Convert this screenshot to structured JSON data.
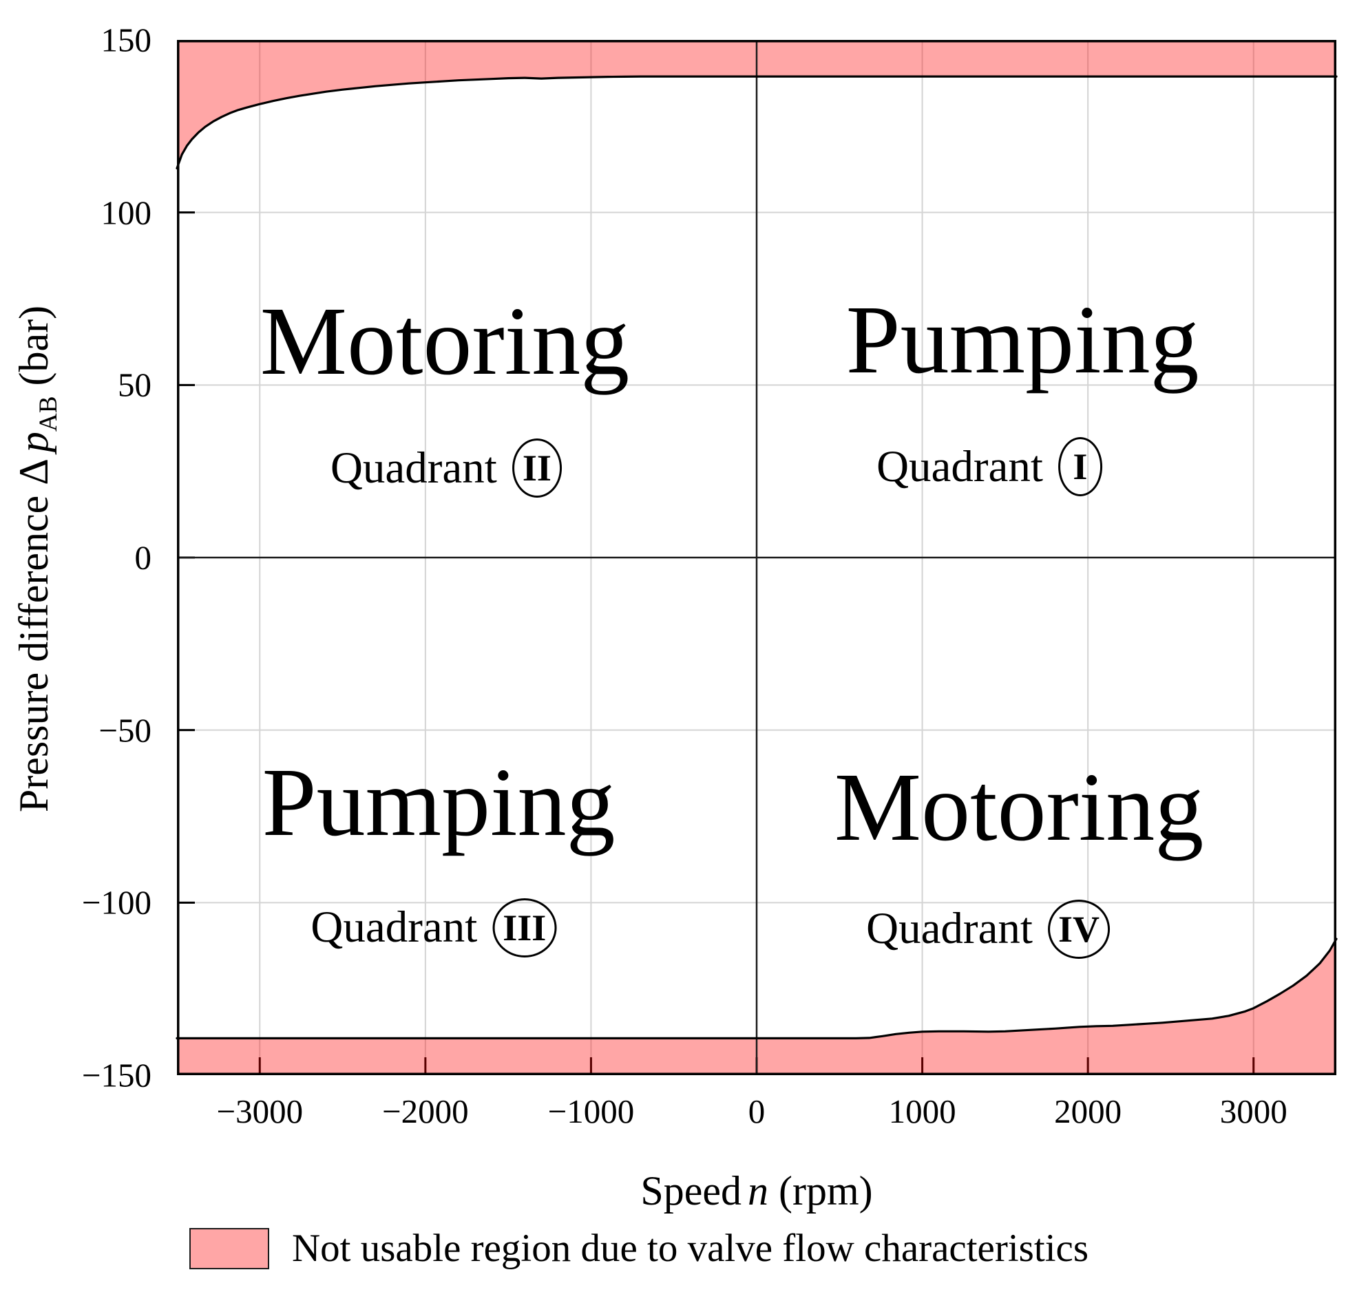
{
  "colors": {
    "region_fill": "rgba(255,0,0,0.35)",
    "swatch_fill": "#ffa6a6",
    "boundary_line": "#000000",
    "grid": "#d4d4d4",
    "zero_line": "#1b1b1b",
    "spine": "#000000",
    "tick": "#000000",
    "text": "#000000"
  },
  "axes": {
    "y": {
      "label_prefix": "Pressure difference Δ",
      "symbol": "p",
      "subscript": "AB",
      "suffix": " (bar)"
    },
    "x": {
      "label_prefix": "Speed",
      "symbol": "n",
      "suffix": " (rpm)"
    }
  },
  "legend": {
    "label": "Not usable region due to valve flow characteristics"
  },
  "quadrants": [
    {
      "big": "Motoring",
      "sub_word": "Quadrant",
      "numeral": "II",
      "big_anchor": {
        "rpm": -1883,
        "bar": 62.8
      },
      "sub_anchor": {
        "rpm": -1875,
        "bar": 25.9
      }
    },
    {
      "big": "Pumping",
      "sub_word": "Quadrant",
      "numeral": "I",
      "big_anchor": {
        "rpm": 1605,
        "bar": 63.2
      },
      "sub_anchor": {
        "rpm": 1405,
        "bar": 26.3
      }
    },
    {
      "big": "Pumping",
      "sub_word": "Quadrant",
      "numeral": "III",
      "big_anchor": {
        "rpm": -1920,
        "bar": -70.8
      },
      "sub_anchor": {
        "rpm": -1950,
        "bar": -107.3
      }
    },
    {
      "big": "Motoring",
      "sub_word": "Quadrant",
      "numeral": "IV",
      "big_anchor": {
        "rpm": 1584,
        "bar": -72.2
      },
      "sub_anchor": {
        "rpm": 1397,
        "bar": -107.7
      }
    }
  ],
  "chart_data": {
    "type": "area",
    "title": "",
    "xlabel": "Speed n (rpm)",
    "ylabel": "Pressure difference ΔpAB (bar)",
    "xlim": [
      -3500,
      3500
    ],
    "ylim": [
      -150,
      150
    ],
    "grid": true,
    "legend_position": "bottom-left",
    "x_ticks": [
      {
        "v": -3000,
        "label": "−3000"
      },
      {
        "v": -2000,
        "label": "−2000"
      },
      {
        "v": -1000,
        "label": "−1000"
      },
      {
        "v": 0,
        "label": "0"
      },
      {
        "v": 1000,
        "label": "1000"
      },
      {
        "v": 2000,
        "label": "2000"
      },
      {
        "v": 3000,
        "label": "3000"
      }
    ],
    "y_ticks": [
      {
        "v": 150,
        "label": "150"
      },
      {
        "v": 100,
        "label": "100"
      },
      {
        "v": 50,
        "label": "50"
      },
      {
        "v": 0,
        "label": "0"
      },
      {
        "v": -50,
        "label": "−50"
      },
      {
        "v": -100,
        "label": "−100"
      },
      {
        "v": -150,
        "label": "−150"
      }
    ],
    "series": [
      {
        "name": "upper_not_usable_boundary",
        "region": "fills up to +150 bar",
        "points": [
          [
            -3500,
            112.8
          ],
          [
            -3470,
            116.8
          ],
          [
            -3440,
            119.3
          ],
          [
            -3410,
            121.2
          ],
          [
            -3370,
            123.2
          ],
          [
            -3330,
            124.8
          ],
          [
            -3280,
            126.4
          ],
          [
            -3230,
            127.7
          ],
          [
            -3180,
            128.8
          ],
          [
            -3130,
            129.7
          ],
          [
            -3080,
            130.4
          ],
          [
            -3000,
            131.4
          ],
          [
            -2920,
            132.3
          ],
          [
            -2840,
            133.1
          ],
          [
            -2760,
            133.8
          ],
          [
            -2680,
            134.4
          ],
          [
            -2600,
            135.0
          ],
          [
            -2500,
            135.6
          ],
          [
            -2400,
            136.1
          ],
          [
            -2300,
            136.6
          ],
          [
            -2200,
            137.0
          ],
          [
            -2100,
            137.4
          ],
          [
            -2000,
            137.7
          ],
          [
            -1900,
            138.0
          ],
          [
            -1800,
            138.3
          ],
          [
            -1700,
            138.5
          ],
          [
            -1600,
            138.7
          ],
          [
            -1500,
            138.9
          ],
          [
            -1400,
            139.0
          ],
          [
            -1300,
            138.8
          ],
          [
            -1200,
            139.0
          ],
          [
            -1100,
            139.1
          ],
          [
            -1000,
            139.2
          ],
          [
            -900,
            139.3
          ],
          [
            -800,
            139.35
          ],
          [
            -700,
            139.4
          ],
          [
            -640,
            139.4
          ],
          [
            0,
            139.4
          ],
          [
            1000,
            139.4
          ],
          [
            2000,
            139.4
          ],
          [
            3000,
            139.4
          ],
          [
            3500,
            139.4
          ]
        ]
      },
      {
        "name": "lower_not_usable_boundary",
        "region": "fills down to −150 bar",
        "points": [
          [
            -3500,
            -139.3
          ],
          [
            -3000,
            -139.3
          ],
          [
            -2000,
            -139.3
          ],
          [
            -1000,
            -139.3
          ],
          [
            0,
            -139.3
          ],
          [
            600,
            -139.3
          ],
          [
            680,
            -139.2
          ],
          [
            760,
            -138.7
          ],
          [
            840,
            -138.1
          ],
          [
            920,
            -137.7
          ],
          [
            1000,
            -137.4
          ],
          [
            1100,
            -137.3
          ],
          [
            1250,
            -137.3
          ],
          [
            1400,
            -137.4
          ],
          [
            1500,
            -137.3
          ],
          [
            1650,
            -136.9
          ],
          [
            1800,
            -136.5
          ],
          [
            1950,
            -136.0
          ],
          [
            2050,
            -135.8
          ],
          [
            2150,
            -135.7
          ],
          [
            2250,
            -135.4
          ],
          [
            2350,
            -135.1
          ],
          [
            2450,
            -134.8
          ],
          [
            2550,
            -134.4
          ],
          [
            2650,
            -134.0
          ],
          [
            2750,
            -133.6
          ],
          [
            2850,
            -132.8
          ],
          [
            2950,
            -131.5
          ],
          [
            3000,
            -130.6
          ],
          [
            3080,
            -128.6
          ],
          [
            3160,
            -126.4
          ],
          [
            3240,
            -124.0
          ],
          [
            3320,
            -121.2
          ],
          [
            3400,
            -117.6
          ],
          [
            3460,
            -113.9
          ],
          [
            3500,
            -110.5
          ]
        ]
      }
    ]
  }
}
